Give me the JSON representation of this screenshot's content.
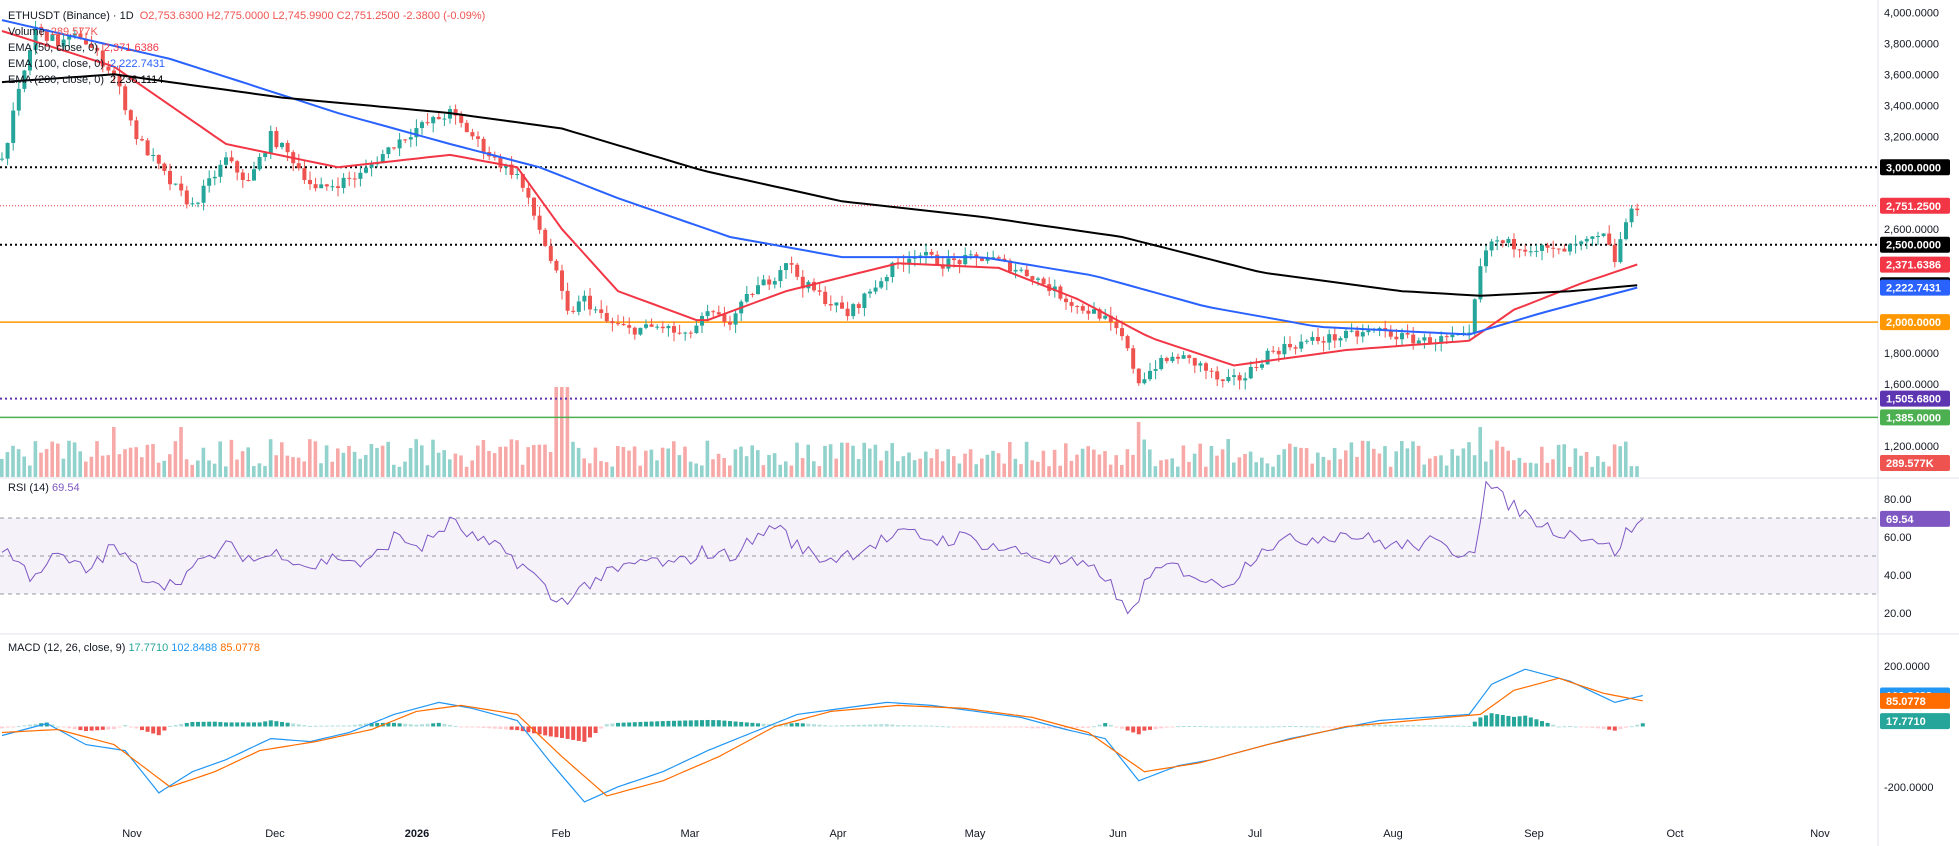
{
  "legend": {
    "symbol": "ETHUSDT (Binance) · 1D",
    "ohlc": "O2,753.6300 H2,775.0000 L2,745.9900 C2,751.2500 -2.3800 (-0.09%)",
    "volume_label": "Volume",
    "volume_value": "289.577K",
    "ema50_label": "EMA (50, close, 0)",
    "ema50_value": "2,371.6386",
    "ema100_label": "EMA (100, close, 0)",
    "ema100_value": "2,222.7431",
    "ema200_label": "EMA (200, close, 0)",
    "ema200_value": "2,238.1114"
  },
  "rsi_legend": {
    "label": "RSI (14)",
    "value": "69.54"
  },
  "macd_legend": {
    "label": "MACD (12, 26, close, 9)",
    "hist": "17.7710",
    "macd": "102.8488",
    "signal": "85.0778"
  },
  "colors": {
    "up": "#26a69a",
    "down": "#ef5350",
    "ema50": "#f23645",
    "ema100": "#2962ff",
    "ema200": "#000000",
    "level2000": "#ff9800",
    "level1385": "#4caf50",
    "rsi": "#7e57c2",
    "macd": "#2196f3",
    "signal": "#ff6d00"
  },
  "chart_data": [
    {
      "type": "candlestick",
      "title": "ETHUSDT",
      "x_labels": [
        "Nov",
        "Dec",
        "2026",
        "Feb",
        "Mar",
        "Apr",
        "May",
        "Jun",
        "Jul",
        "Aug",
        "Sep",
        "Oct",
        "Nov"
      ],
      "y_ticks": [
        "4,000.0000",
        "3,800.0000",
        "3,600.0000",
        "3,400.0000",
        "3,200.0000",
        "2,600.0000",
        "1,800.0000",
        "1,600.0000",
        "1,200.0000"
      ],
      "ylim": [
        1000,
        4080
      ],
      "price_path": [
        [
          0,
          3050
        ],
        [
          6,
          3900
        ],
        [
          10,
          3800
        ],
        [
          14,
          3850
        ],
        [
          20,
          3600
        ],
        [
          24,
          3200
        ],
        [
          30,
          2900
        ],
        [
          34,
          2750
        ],
        [
          40,
          3050
        ],
        [
          44,
          2900
        ],
        [
          48,
          3200
        ],
        [
          52,
          3050
        ],
        [
          56,
          2850
        ],
        [
          60,
          2900
        ],
        [
          64,
          2950
        ],
        [
          70,
          3150
        ],
        [
          74,
          3250
        ],
        [
          80,
          3350
        ],
        [
          84,
          3200
        ],
        [
          88,
          3050
        ],
        [
          92,
          2950
        ],
        [
          96,
          2600
        ],
        [
          99,
          2300
        ],
        [
          101,
          2050
        ],
        [
          104,
          2150
        ],
        [
          108,
          2000
        ],
        [
          112,
          1950
        ],
        [
          118,
          1970
        ],
        [
          122,
          1900
        ],
        [
          126,
          2050
        ],
        [
          130,
          2000
        ],
        [
          134,
          2200
        ],
        [
          138,
          2300
        ],
        [
          140,
          2400
        ],
        [
          143,
          2250
        ],
        [
          147,
          2150
        ],
        [
          151,
          2050
        ],
        [
          155,
          2200
        ],
        [
          159,
          2350
        ],
        [
          163,
          2450
        ],
        [
          168,
          2380
        ],
        [
          172,
          2400
        ],
        [
          176,
          2420
        ],
        [
          180,
          2360
        ],
        [
          184,
          2300
        ],
        [
          188,
          2200
        ],
        [
          192,
          2100
        ],
        [
          196,
          2050
        ],
        [
          200,
          1900
        ],
        [
          203,
          1620
        ],
        [
          206,
          1720
        ],
        [
          210,
          1780
        ],
        [
          214,
          1720
        ],
        [
          218,
          1600
        ],
        [
          222,
          1650
        ],
        [
          226,
          1800
        ],
        [
          230,
          1850
        ],
        [
          234,
          1880
        ],
        [
          238,
          1900
        ],
        [
          242,
          1920
        ],
        [
          246,
          1950
        ],
        [
          250,
          1900
        ],
        [
          254,
          1880
        ],
        [
          258,
          1890
        ],
        [
          262,
          1900
        ],
        [
          264,
          2350
        ],
        [
          266,
          2520
        ],
        [
          270,
          2500
        ],
        [
          274,
          2480
        ],
        [
          278,
          2450
        ],
        [
          282,
          2500
        ],
        [
          286,
          2550
        ],
        [
          288,
          2400
        ],
        [
          290,
          2650
        ],
        [
          292,
          2751
        ]
      ],
      "price_series": [
        {
          "name": "EMA (50, close, 0)",
          "points": [
            [
              0,
              3880
            ],
            [
              20,
              3650
            ],
            [
              40,
              3150
            ],
            [
              60,
              3000
            ],
            [
              80,
              3080
            ],
            [
              92,
              3000
            ],
            [
              100,
              2600
            ],
            [
              110,
              2200
            ],
            [
              125,
              2000
            ],
            [
              140,
              2200
            ],
            [
              160,
              2380
            ],
            [
              178,
              2350
            ],
            [
              192,
              2150
            ],
            [
              205,
              1900
            ],
            [
              220,
              1720
            ],
            [
              240,
              1820
            ],
            [
              262,
              1880
            ],
            [
              270,
              2080
            ],
            [
              282,
              2250
            ],
            [
              292,
              2372
            ]
          ]
        },
        {
          "name": "EMA (100, close, 0)",
          "points": [
            [
              0,
              3950
            ],
            [
              30,
              3700
            ],
            [
              60,
              3350
            ],
            [
              80,
              3150
            ],
            [
              96,
              3000
            ],
            [
              110,
              2800
            ],
            [
              130,
              2550
            ],
            [
              150,
              2420
            ],
            [
              175,
              2420
            ],
            [
              195,
              2300
            ],
            [
              215,
              2100
            ],
            [
              235,
              1970
            ],
            [
              262,
              1920
            ],
            [
              275,
              2060
            ],
            [
              292,
              2223
            ]
          ]
        },
        {
          "name": "EMA (200, close, 0)",
          "points": [
            [
              0,
              3550
            ],
            [
              20,
              3600
            ],
            [
              50,
              3450
            ],
            [
              80,
              3350
            ],
            [
              100,
              3250
            ],
            [
              125,
              2980
            ],
            [
              150,
              2780
            ],
            [
              175,
              2680
            ],
            [
              200,
              2550
            ],
            [
              225,
              2320
            ],
            [
              250,
              2200
            ],
            [
              264,
              2170
            ],
            [
              280,
              2200
            ],
            [
              292,
              2238
            ]
          ]
        }
      ],
      "levels": [
        {
          "value": 3000,
          "label": "3,000.0000",
          "color": "#000000",
          "style": "dotted"
        },
        {
          "value": 2751.25,
          "label": "2,751.2500",
          "color": "#f23645",
          "style": "dotted-thin"
        },
        {
          "value": 2500,
          "label": "2,500.0000",
          "color": "#000000",
          "style": "dotted"
        },
        {
          "value": 2000,
          "label": "2,000.0000",
          "color": "#ff9800",
          "style": "solid"
        },
        {
          "value": 1505.68,
          "label": "1,505.6800",
          "color": "#5e35b1",
          "style": "dotted"
        },
        {
          "value": 1385,
          "label": "1,385.0000",
          "color": "#4caf50",
          "style": "solid"
        }
      ],
      "price_badges": [
        {
          "value": 2371.6386,
          "label": "2,371.6386",
          "color": "#f23645"
        },
        {
          "value": 2238.1114,
          "label": "2,238.1114",
          "color": "#000000"
        },
        {
          "value": 2222.7431,
          "label": "2,222.7431",
          "color": "#2962ff"
        }
      ],
      "volume_badge": {
        "label": "289.577K",
        "color": "#ef5350"
      }
    },
    {
      "type": "line",
      "title": "RSI (14)",
      "y_ticks": [
        "80.00",
        "60.00",
        "40.00",
        "20.00"
      ],
      "ylim": [
        10,
        90
      ],
      "bands": [
        30,
        50,
        70
      ],
      "current": {
        "value": 69.54,
        "label": "69.54"
      },
      "points": [
        [
          0,
          55
        ],
        [
          5,
          40
        ],
        [
          10,
          50
        ],
        [
          15,
          42
        ],
        [
          20,
          55
        ],
        [
          25,
          40
        ],
        [
          30,
          35
        ],
        [
          35,
          45
        ],
        [
          40,
          55
        ],
        [
          45,
          48
        ],
        [
          50,
          52
        ],
        [
          55,
          44
        ],
        [
          60,
          50
        ],
        [
          65,
          45
        ],
        [
          70,
          60
        ],
        [
          75,
          55
        ],
        [
          80,
          68
        ],
        [
          85,
          58
        ],
        [
          90,
          52
        ],
        [
          95,
          40
        ],
        [
          99,
          25
        ],
        [
          102,
          30
        ],
        [
          106,
          38
        ],
        [
          110,
          42
        ],
        [
          115,
          48
        ],
        [
          120,
          45
        ],
        [
          125,
          52
        ],
        [
          130,
          50
        ],
        [
          135,
          60
        ],
        [
          138,
          67
        ],
        [
          142,
          55
        ],
        [
          147,
          48
        ],
        [
          152,
          52
        ],
        [
          157,
          58
        ],
        [
          162,
          62
        ],
        [
          167,
          58
        ],
        [
          172,
          60
        ],
        [
          177,
          55
        ],
        [
          182,
          52
        ],
        [
          187,
          48
        ],
        [
          192,
          45
        ],
        [
          197,
          40
        ],
        [
          201,
          18
        ],
        [
          204,
          35
        ],
        [
          208,
          45
        ],
        [
          212,
          42
        ],
        [
          216,
          35
        ],
        [
          220,
          38
        ],
        [
          225,
          55
        ],
        [
          230,
          58
        ],
        [
          235,
          60
        ],
        [
          240,
          62
        ],
        [
          245,
          58
        ],
        [
          250,
          55
        ],
        [
          255,
          57
        ],
        [
          260,
          52
        ],
        [
          263,
          55
        ],
        [
          265,
          88
        ],
        [
          268,
          80
        ],
        [
          272,
          72
        ],
        [
          276,
          65
        ],
        [
          280,
          62
        ],
        [
          284,
          60
        ],
        [
          288,
          52
        ],
        [
          290,
          62
        ],
        [
          293,
          69.54
        ]
      ]
    },
    {
      "type": "bar",
      "title": "MACD (12, 26, close, 9)",
      "y_ticks": [
        "200.0000",
        "-200.0000"
      ],
      "ylim": [
        -310,
        300
      ],
      "series": [
        {
          "name": "MACD",
          "points": [
            [
              0,
              -30
            ],
            [
              8,
              10
            ],
            [
              15,
              -60
            ],
            [
              22,
              -80
            ],
            [
              28,
              -220
            ],
            [
              34,
              -150
            ],
            [
              40,
              -110
            ],
            [
              48,
              -40
            ],
            [
              55,
              -50
            ],
            [
              62,
              -20
            ],
            [
              70,
              40
            ],
            [
              78,
              80
            ],
            [
              84,
              60
            ],
            [
              92,
              20
            ],
            [
              98,
              -120
            ],
            [
              104,
              -250
            ],
            [
              110,
              -200
            ],
            [
              118,
              -150
            ],
            [
              126,
              -80
            ],
            [
              134,
              -20
            ],
            [
              142,
              40
            ],
            [
              150,
              60
            ],
            [
              158,
              80
            ],
            [
              166,
              70
            ],
            [
              174,
              50
            ],
            [
              182,
              30
            ],
            [
              190,
              -10
            ],
            [
              197,
              -40
            ],
            [
              203,
              -180
            ],
            [
              210,
              -130
            ],
            [
              216,
              -110
            ],
            [
              222,
              -80
            ],
            [
              230,
              -40
            ],
            [
              238,
              -10
            ],
            [
              246,
              20
            ],
            [
              254,
              30
            ],
            [
              262,
              40
            ],
            [
              266,
              140
            ],
            [
              272,
              190
            ],
            [
              280,
              150
            ],
            [
              288,
              80
            ],
            [
              293,
              102.85
            ]
          ]
        },
        {
          "name": "Signal",
          "points": [
            [
              0,
              -20
            ],
            [
              10,
              -10
            ],
            [
              20,
              -60
            ],
            [
              30,
              -200
            ],
            [
              38,
              -150
            ],
            [
              46,
              -80
            ],
            [
              56,
              -50
            ],
            [
              66,
              -10
            ],
            [
              74,
              50
            ],
            [
              82,
              70
            ],
            [
              92,
              40
            ],
            [
              100,
              -100
            ],
            [
              108,
              -230
            ],
            [
              118,
              -180
            ],
            [
              128,
              -100
            ],
            [
              138,
              0
            ],
            [
              148,
              50
            ],
            [
              160,
              70
            ],
            [
              172,
              60
            ],
            [
              184,
              30
            ],
            [
              194,
              -20
            ],
            [
              204,
              -150
            ],
            [
              214,
              -120
            ],
            [
              226,
              -60
            ],
            [
              240,
              0
            ],
            [
              252,
              20
            ],
            [
              264,
              40
            ],
            [
              270,
              120
            ],
            [
              278,
              160
            ],
            [
              286,
              110
            ],
            [
              293,
              85.08
            ]
          ]
        }
      ],
      "histogram_current": 17.771,
      "current_badges": [
        {
          "value": 102.8488,
          "label": "102.8488",
          "color": "#2196f3"
        },
        {
          "value": 85.0778,
          "label": "85.0778",
          "color": "#ff6d00"
        },
        {
          "value": 17.771,
          "label": "17.7710",
          "color": "#26a69a"
        }
      ]
    }
  ]
}
